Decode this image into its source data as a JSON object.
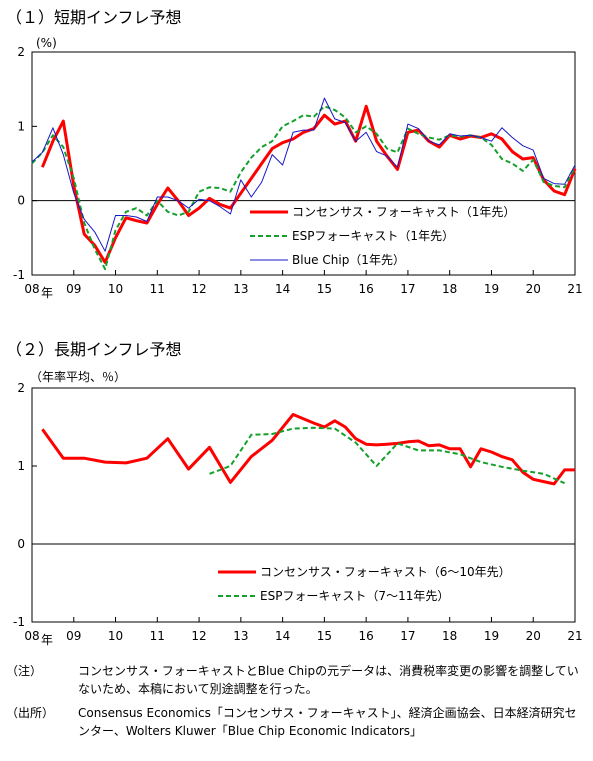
{
  "chart_data": [
    {
      "type": "line",
      "title": "（１）短期インフレ予想",
      "unit_label": "(%)",
      "ylim": [
        -1,
        2
      ],
      "yticks": [
        "2",
        "1",
        "0",
        "-1"
      ],
      "year_labels": [
        "08",
        "09",
        "10",
        "11",
        "12",
        "13",
        "14",
        "15",
        "16",
        "17",
        "18",
        "19",
        "20",
        "21"
      ],
      "year_suffix": "年",
      "x_range": [
        2008.0,
        2021.0
      ],
      "legend_position": "bottom-right",
      "series": [
        {
          "name": "コンセンサス・フォーキャスト（1年先）",
          "color": "#ff0000",
          "style": "thick",
          "points": [
            [
              2008.25,
              0.45
            ],
            [
              2008.5,
              0.8
            ],
            [
              2008.75,
              1.07
            ],
            [
              2009.0,
              0.2
            ],
            [
              2009.25,
              -0.45
            ],
            [
              2009.5,
              -0.6
            ],
            [
              2009.75,
              -0.83
            ],
            [
              2010.0,
              -0.5
            ],
            [
              2010.25,
              -0.23
            ],
            [
              2010.5,
              -0.27
            ],
            [
              2010.75,
              -0.3
            ],
            [
              2011.0,
              -0.05
            ],
            [
              2011.25,
              0.17
            ],
            [
              2011.5,
              0.0
            ],
            [
              2011.75,
              -0.2
            ],
            [
              2012.0,
              -0.1
            ],
            [
              2012.25,
              0.03
            ],
            [
              2012.5,
              -0.05
            ],
            [
              2012.75,
              -0.1
            ],
            [
              2013.0,
              0.1
            ],
            [
              2013.25,
              0.3
            ],
            [
              2013.5,
              0.5
            ],
            [
              2013.75,
              0.7
            ],
            [
              2014.0,
              0.78
            ],
            [
              2014.25,
              0.83
            ],
            [
              2014.5,
              0.92
            ],
            [
              2014.75,
              0.97
            ],
            [
              2015.0,
              1.15
            ],
            [
              2015.25,
              1.03
            ],
            [
              2015.5,
              1.07
            ],
            [
              2015.75,
              0.8
            ],
            [
              2016.0,
              1.27
            ],
            [
              2016.25,
              0.8
            ],
            [
              2016.5,
              0.6
            ],
            [
              2016.75,
              0.42
            ],
            [
              2017.0,
              0.92
            ],
            [
              2017.25,
              0.95
            ],
            [
              2017.5,
              0.8
            ],
            [
              2017.75,
              0.72
            ],
            [
              2018.0,
              0.88
            ],
            [
              2018.25,
              0.83
            ],
            [
              2018.5,
              0.87
            ],
            [
              2018.75,
              0.85
            ],
            [
              2019.0,
              0.9
            ],
            [
              2019.25,
              0.83
            ],
            [
              2019.5,
              0.66
            ],
            [
              2019.75,
              0.56
            ],
            [
              2020.0,
              0.58
            ],
            [
              2020.25,
              0.28
            ],
            [
              2020.5,
              0.13
            ],
            [
              2020.75,
              0.08
            ],
            [
              2021.0,
              0.43
            ]
          ]
        },
        {
          "name": "ESPフォーキャスト（1年先）",
          "color": "#14a02c",
          "style": "dashed",
          "points": [
            [
              2008.0,
              0.5
            ],
            [
              2008.25,
              0.65
            ],
            [
              2008.5,
              0.88
            ],
            [
              2008.75,
              0.72
            ],
            [
              2009.0,
              0.3
            ],
            [
              2009.25,
              -0.3
            ],
            [
              2009.5,
              -0.65
            ],
            [
              2009.75,
              -0.92
            ],
            [
              2010.0,
              -0.4
            ],
            [
              2010.25,
              -0.15
            ],
            [
              2010.5,
              -0.1
            ],
            [
              2010.75,
              -0.2
            ],
            [
              2011.0,
              0.0
            ],
            [
              2011.25,
              -0.15
            ],
            [
              2011.5,
              -0.2
            ],
            [
              2011.75,
              -0.15
            ],
            [
              2012.0,
              0.12
            ],
            [
              2012.25,
              0.18
            ],
            [
              2012.5,
              0.17
            ],
            [
              2012.75,
              0.12
            ],
            [
              2013.0,
              0.38
            ],
            [
              2013.25,
              0.58
            ],
            [
              2013.5,
              0.72
            ],
            [
              2013.75,
              0.8
            ],
            [
              2014.0,
              1.0
            ],
            [
              2014.25,
              1.07
            ],
            [
              2014.5,
              1.15
            ],
            [
              2014.75,
              1.13
            ],
            [
              2015.0,
              1.27
            ],
            [
              2015.25,
              1.22
            ],
            [
              2015.5,
              1.12
            ],
            [
              2015.75,
              0.92
            ],
            [
              2016.0,
              1.0
            ],
            [
              2016.25,
              0.9
            ],
            [
              2016.5,
              0.7
            ],
            [
              2016.75,
              0.65
            ],
            [
              2017.0,
              0.97
            ],
            [
              2017.25,
              0.9
            ],
            [
              2017.5,
              0.85
            ],
            [
              2017.75,
              0.82
            ],
            [
              2018.0,
              0.88
            ],
            [
              2018.25,
              0.86
            ],
            [
              2018.5,
              0.88
            ],
            [
              2018.75,
              0.85
            ],
            [
              2019.0,
              0.75
            ],
            [
              2019.25,
              0.56
            ],
            [
              2019.5,
              0.5
            ],
            [
              2019.75,
              0.4
            ],
            [
              2020.0,
              0.55
            ],
            [
              2020.25,
              0.25
            ],
            [
              2020.5,
              0.2
            ],
            [
              2020.75,
              0.18
            ],
            [
              2021.0,
              0.45
            ]
          ]
        },
        {
          "name": "Blue Chip（1年先）",
          "color": "#1818c8",
          "style": "thin",
          "points": [
            [
              2008.0,
              0.52
            ],
            [
              2008.25,
              0.65
            ],
            [
              2008.5,
              0.98
            ],
            [
              2008.75,
              0.62
            ],
            [
              2009.0,
              0.1
            ],
            [
              2009.25,
              -0.25
            ],
            [
              2009.5,
              -0.42
            ],
            [
              2009.75,
              -0.68
            ],
            [
              2010.0,
              -0.2
            ],
            [
              2010.25,
              -0.2
            ],
            [
              2010.5,
              -0.22
            ],
            [
              2010.75,
              -0.28
            ],
            [
              2011.0,
              0.05
            ],
            [
              2011.25,
              0.05
            ],
            [
              2011.5,
              0.0
            ],
            [
              2011.75,
              -0.1
            ],
            [
              2012.0,
              0.02
            ],
            [
              2012.25,
              0.0
            ],
            [
              2012.5,
              -0.08
            ],
            [
              2012.75,
              -0.18
            ],
            [
              2013.0,
              0.28
            ],
            [
              2013.25,
              0.05
            ],
            [
              2013.5,
              0.25
            ],
            [
              2013.75,
              0.62
            ],
            [
              2014.0,
              0.48
            ],
            [
              2014.25,
              0.92
            ],
            [
              2014.5,
              0.95
            ],
            [
              2014.75,
              0.95
            ],
            [
              2015.0,
              1.38
            ],
            [
              2015.25,
              1.1
            ],
            [
              2015.5,
              1.05
            ],
            [
              2015.75,
              0.8
            ],
            [
              2016.0,
              0.92
            ],
            [
              2016.25,
              0.66
            ],
            [
              2016.5,
              0.6
            ],
            [
              2016.75,
              0.45
            ],
            [
              2017.0,
              1.03
            ],
            [
              2017.25,
              0.97
            ],
            [
              2017.5,
              0.8
            ],
            [
              2017.75,
              0.75
            ],
            [
              2018.0,
              0.9
            ],
            [
              2018.25,
              0.87
            ],
            [
              2018.5,
              0.88
            ],
            [
              2018.75,
              0.85
            ],
            [
              2019.0,
              0.8
            ],
            [
              2019.25,
              0.98
            ],
            [
              2019.5,
              0.85
            ],
            [
              2019.75,
              0.74
            ],
            [
              2020.0,
              0.68
            ],
            [
              2020.25,
              0.3
            ],
            [
              2020.5,
              0.23
            ],
            [
              2020.75,
              0.22
            ],
            [
              2021.0,
              0.48
            ]
          ]
        }
      ]
    },
    {
      "type": "line",
      "title": "（２）長期インフレ予想",
      "unit_label": "（年率平均、％）",
      "ylim": [
        -1,
        2
      ],
      "yticks": [
        "2",
        "1",
        "0",
        "-1"
      ],
      "year_labels": [
        "08",
        "09",
        "10",
        "11",
        "12",
        "13",
        "14",
        "15",
        "16",
        "17",
        "18",
        "19",
        "20",
        "21"
      ],
      "year_suffix": "年",
      "x_range": [
        2008.0,
        2021.0
      ],
      "legend_position": "bottom-right",
      "series": [
        {
          "name": "コンセンサス・フォーキャスト（6～10年先）",
          "color": "#ff0000",
          "style": "thick",
          "points": [
            [
              2008.25,
              1.47
            ],
            [
              2008.75,
              1.1
            ],
            [
              2009.25,
              1.1
            ],
            [
              2009.75,
              1.05
            ],
            [
              2010.25,
              1.04
            ],
            [
              2010.75,
              1.1
            ],
            [
              2011.25,
              1.35
            ],
            [
              2011.75,
              0.96
            ],
            [
              2012.25,
              1.24
            ],
            [
              2012.75,
              0.79
            ],
            [
              2013.25,
              1.12
            ],
            [
              2013.75,
              1.33
            ],
            [
              2014.25,
              1.66
            ],
            [
              2014.75,
              1.55
            ],
            [
              2015.0,
              1.5
            ],
            [
              2015.25,
              1.58
            ],
            [
              2015.5,
              1.5
            ],
            [
              2015.75,
              1.35
            ],
            [
              2016.0,
              1.28
            ],
            [
              2016.25,
              1.27
            ],
            [
              2016.5,
              1.28
            ],
            [
              2016.75,
              1.29
            ],
            [
              2017.0,
              1.31
            ],
            [
              2017.25,
              1.32
            ],
            [
              2017.5,
              1.26
            ],
            [
              2017.75,
              1.27
            ],
            [
              2018.0,
              1.22
            ],
            [
              2018.25,
              1.22
            ],
            [
              2018.5,
              0.99
            ],
            [
              2018.75,
              1.22
            ],
            [
              2019.0,
              1.18
            ],
            [
              2019.25,
              1.12
            ],
            [
              2019.5,
              1.08
            ],
            [
              2019.75,
              0.92
            ],
            [
              2020.0,
              0.83
            ],
            [
              2020.25,
              0.8
            ],
            [
              2020.5,
              0.77
            ],
            [
              2020.75,
              0.95
            ],
            [
              2021.0,
              0.95
            ]
          ]
        },
        {
          "name": "ESPフォーキャスト（7～11年先）",
          "color": "#14a02c",
          "style": "dashed",
          "points": [
            [
              2012.25,
              0.9
            ],
            [
              2012.75,
              1.0
            ],
            [
              2013.25,
              1.4
            ],
            [
              2013.75,
              1.41
            ],
            [
              2014.25,
              1.48
            ],
            [
              2014.75,
              1.49
            ],
            [
              2015.25,
              1.48
            ],
            [
              2015.75,
              1.3
            ],
            [
              2016.25,
              1.0
            ],
            [
              2016.75,
              1.29
            ],
            [
              2017.25,
              1.2
            ],
            [
              2017.75,
              1.2
            ],
            [
              2018.25,
              1.15
            ],
            [
              2018.75,
              1.05
            ],
            [
              2019.25,
              0.99
            ],
            [
              2019.75,
              0.94
            ],
            [
              2020.25,
              0.9
            ],
            [
              2020.75,
              0.78
            ]
          ]
        }
      ]
    }
  ],
  "notes": [
    {
      "label": "（注）",
      "text": "コンセンサス・フォーキャストとBlue Chipの元データは、消費税率変更の影響を調整していないため、本稿において別途調整を行った。"
    },
    {
      "label": "（出所）",
      "text": "Consensus Economics「コンセンサス・フォーキャスト」、経済企画協会、日本経済研究センター、Wolters Kluwer「Blue Chip Economic Indicators」"
    }
  ]
}
